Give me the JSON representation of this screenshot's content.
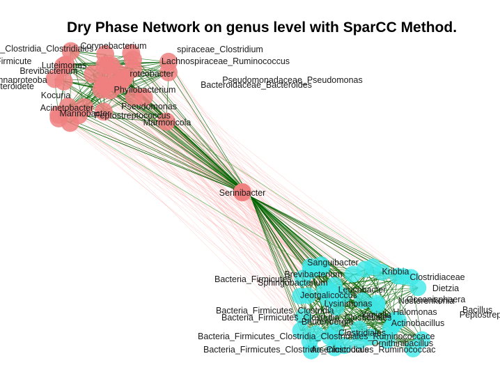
{
  "title": "Dry Phase Network on genus level with SparCC Method.",
  "colors": {
    "cluster_a_node": "#f08080",
    "cluster_b_node": "#40e8e8",
    "hub_node": "#f08080",
    "positive_edge": "#006400",
    "negative_edge": "#ff9a9a"
  },
  "nodes_cluster_a": [
    "Corynebacterium",
    "s_Clostridia_Clostridiales",
    "spiraceae_Clostridium",
    "Firmicute",
    "Lachnospiraceae_Ruminococcus",
    "Luteimonas",
    "Brevibacterium",
    "roteobacter",
    "mnaproteoba",
    "Pseudomonadaceae_Pseudomonas",
    "cteroidete",
    "Bacteroidaceae_Bacteroides",
    "Kocuria",
    "Phyllobacterium",
    "Acinetobacter",
    "Pseudomonas",
    "Marinobacter",
    "Peptostreptococcus",
    "Marmoricola"
  ],
  "hub": "Serinibacter",
  "nodes_cluster_b": [
    "Sanguibacter",
    "Kribbia",
    "Brevibacterium",
    "Bacteria_Firmicutes",
    "Sphingobacterium",
    "Clostridiaceae",
    "Dietzia",
    "Leucobacter",
    "Jeotgalicoccus",
    "Bacteria_Firmicutes_Clostridia",
    "Bacteria_Firmicutes_Clostridia_Clostridiales",
    "Beutenbergia",
    "Actinobacillus",
    "Bacteria_Firmicutes_Clostridia_Clostridiales_Ruminococcace",
    "Bacteria_Firmicutes_Clostridia_Clostridiales_Ruminococcac",
    "Ornithinibacillus",
    "Arsenicicoccus",
    "Clostridiales",
    "Lysinimonas",
    "Halomonas",
    "Nesterenkonia",
    "Bacillus",
    "Peptostrep",
    "Oceanisphaera",
    "Yaniella"
  ]
}
